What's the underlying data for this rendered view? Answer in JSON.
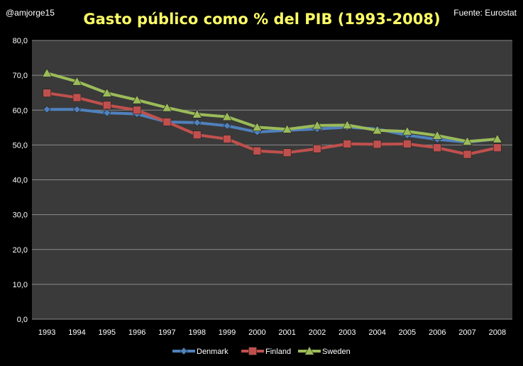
{
  "header": {
    "author": "@amjorge15",
    "source": "Fuente: Eurostat"
  },
  "colors": {
    "background": "#000000",
    "plot_area": "#3a3a3a",
    "title": "#ffff66",
    "text": "#ffffff",
    "gridline": "#8a8a8a",
    "denmark": "#4f81bd",
    "finland": "#c0504d",
    "sweden": "#9bbb59"
  },
  "chart_data": {
    "type": "line",
    "title": "Gasto público como % del PIB (1993-2008)",
    "xlabel": "",
    "ylabel": "",
    "ylim": [
      0,
      80
    ],
    "ytick_step": 10,
    "ytick_labels": [
      "0,0",
      "10,0",
      "20,0",
      "30,0",
      "40,0",
      "50,0",
      "60,0",
      "70,0",
      "80,0"
    ],
    "grid": true,
    "legend_position": "bottom",
    "categories": [
      "1993",
      "1994",
      "1995",
      "1996",
      "1997",
      "1998",
      "1999",
      "2000",
      "2001",
      "2002",
      "2003",
      "2004",
      "2005",
      "2006",
      "2007",
      "2008"
    ],
    "series": [
      {
        "name": "Denmark",
        "marker": "diamond",
        "color": "#4f81bd",
        "values": [
          60.2,
          60.2,
          59.2,
          58.9,
          56.6,
          56.4,
          55.5,
          53.7,
          54.2,
          54.6,
          55.1,
          54.6,
          52.8,
          51.6,
          50.8,
          51.7
        ]
      },
      {
        "name": "Finland",
        "marker": "square",
        "color": "#c0504d",
        "values": [
          64.9,
          63.6,
          61.4,
          60.0,
          56.6,
          52.9,
          51.7,
          48.3,
          47.8,
          48.9,
          50.3,
          50.2,
          50.3,
          49.2,
          47.3,
          49.2
        ]
      },
      {
        "name": "Sweden",
        "marker": "triangle",
        "color": "#9bbb59",
        "values": [
          70.6,
          68.2,
          64.9,
          62.9,
          60.7,
          58.8,
          58.1,
          55.1,
          54.5,
          55.6,
          55.7,
          54.2,
          53.9,
          52.7,
          51.0,
          51.7
        ]
      }
    ]
  }
}
